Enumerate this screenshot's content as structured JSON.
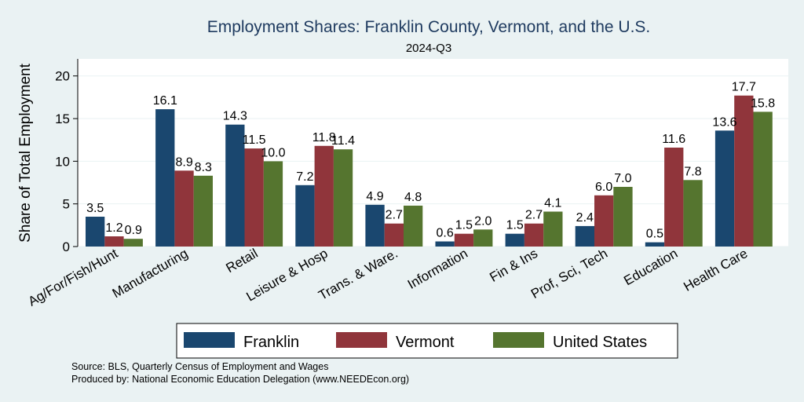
{
  "chart_data": {
    "type": "bar",
    "title": "Employment Shares: Franklin County, Vermont, and the U.S.",
    "subtitle": "2024-Q3",
    "ylabel": "Share of Total Employment",
    "xlabel": "",
    "ylim": [
      0,
      22
    ],
    "yticks": [
      0,
      5,
      10,
      15,
      20
    ],
    "grid": true,
    "legend_position": "bottom",
    "categories": [
      "Ag/For/Fish/Hunt",
      "Manufacturing",
      "Retail",
      "Leisure & Hosp",
      "Trans. & Ware.",
      "Information",
      "Fin & Ins",
      "Prof, Sci, Tech",
      "Education",
      "Health Care"
    ],
    "series": [
      {
        "name": "Franklin",
        "color": "#1a476f",
        "values": [
          3.5,
          16.1,
          14.3,
          7.2,
          4.9,
          0.6,
          1.5,
          2.4,
          0.5,
          13.6
        ]
      },
      {
        "name": "Vermont",
        "color": "#90353b",
        "values": [
          1.2,
          8.9,
          11.5,
          11.8,
          2.7,
          1.5,
          2.7,
          6.0,
          11.6,
          17.7
        ]
      },
      {
        "name": "United States",
        "color": "#55752f",
        "values": [
          0.9,
          8.3,
          10.0,
          11.4,
          4.8,
          2.0,
          4.1,
          7.0,
          7.8,
          15.8
        ]
      }
    ],
    "notes": [
      "Source: BLS, Quarterly Census of Employment and Wages",
      "Produced by: National Economic Education Delegation (www.NEEDEcon.org)"
    ]
  }
}
